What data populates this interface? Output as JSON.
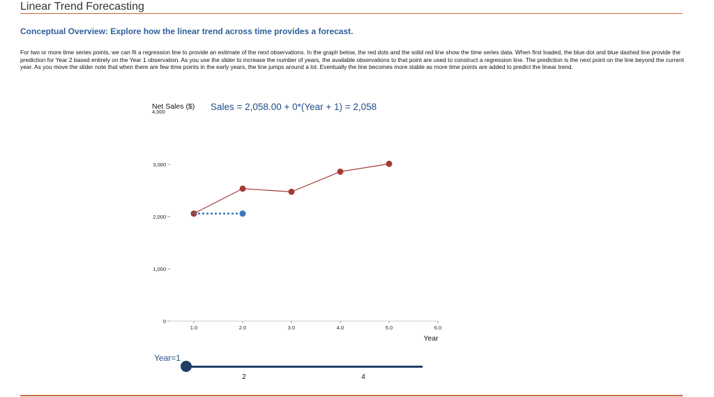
{
  "page": {
    "title": "Linear Trend Forecasting",
    "subtitle": "Conceptual Overview: Explore how the linear trend across time provides a forecast.",
    "overview": "For two or more time series points, we can fit a regression line to provide an estimate of the next observations. In the graph below, the red dots and the solid red line show the time series data. When first loaded, the blue dot and blue dashed line provide the prediction for Year 2 based entirely on the Year 1 observation. As you use the slider to increase the number of years, the available observations to that point are used to construct a regression line. The prediction is the next point on the line beyond the current year. As you move the slider note that when there are few time points in the early years, the line jumps around a lot. Eventually the line becomes more stable as more time points are added to predict the linear trend.",
    "equation": "Sales = 2,058.00 + 0*(Year + 1) = 2,058"
  },
  "slider": {
    "label": "Year=1",
    "value": 1,
    "min": 1,
    "max": 5,
    "tick_labels": [
      "2",
      "4"
    ]
  },
  "chart_data": {
    "type": "line",
    "ylabel": "Net Sales ($)",
    "xlabel": "Year",
    "xlim": [
      0.5,
      6.0
    ],
    "ylim": [
      0,
      4000
    ],
    "x_ticks": [
      1.0,
      2.0,
      3.0,
      4.0,
      5.0,
      6.0
    ],
    "x_tick_labels": [
      "1.0",
      "2.0",
      "3.0",
      "4.0",
      "5.0",
      "6.0"
    ],
    "y_ticks": [
      0,
      1000,
      2000,
      3000,
      4000
    ],
    "y_tick_labels": [
      "0",
      "1,000",
      "2,000",
      "3,000",
      "4,000"
    ],
    "series": [
      {
        "x": [
          1,
          2,
          3,
          4,
          5
        ],
        "y": [
          2058,
          2535,
          2475,
          2860,
          3010
        ],
        "color": "#a33b35"
      }
    ],
    "prediction": {
      "x": [
        1,
        2
      ],
      "y": [
        2058,
        2058
      ],
      "color": "#3a78b6"
    }
  }
}
